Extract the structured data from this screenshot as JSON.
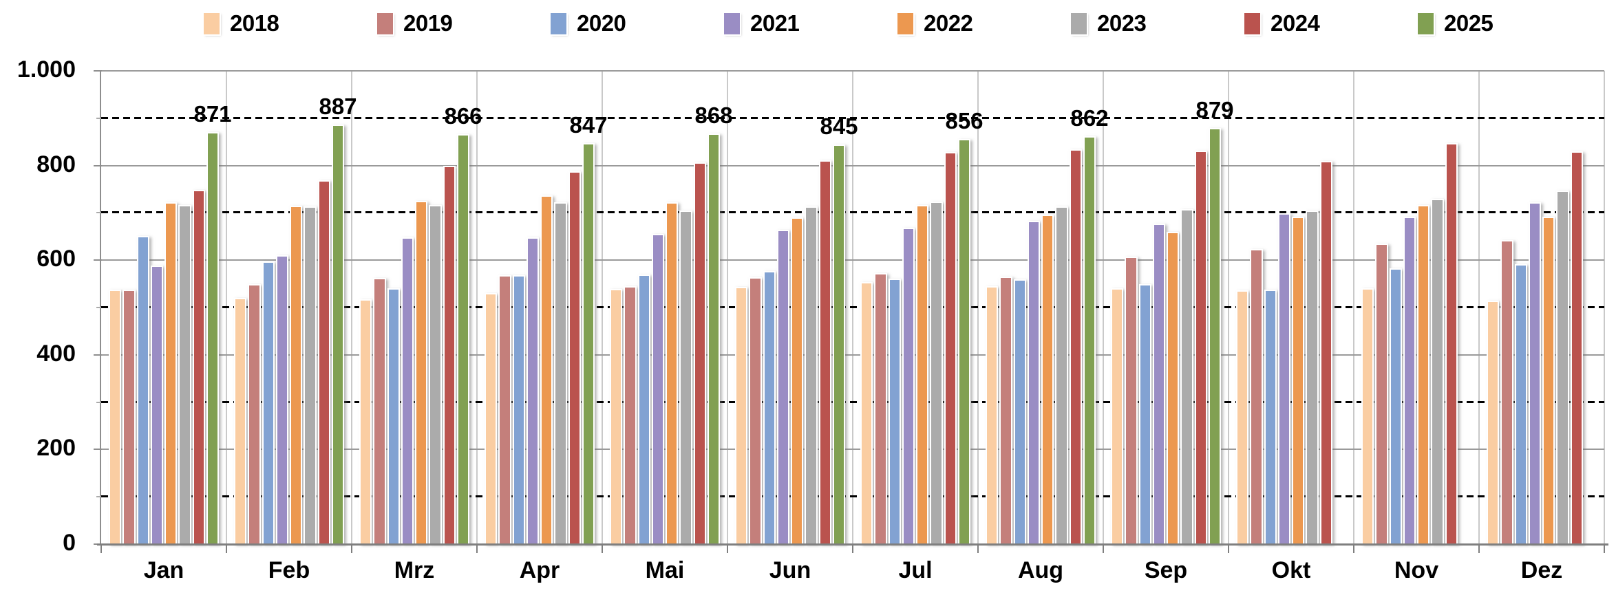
{
  "chart_data": {
    "type": "bar",
    "title": "",
    "xlabel": "",
    "ylabel": "",
    "legend_position": "top",
    "categories": [
      "Jan",
      "Feb",
      "Mrz",
      "Apr",
      "Mai",
      "Jun",
      "Jul",
      "Aug",
      "Sep",
      "Okt",
      "Nov",
      "Dez"
    ],
    "series": [
      {
        "name": "2018",
        "color": "#FACDA2",
        "values": [
          538,
          521,
          518,
          531,
          539,
          544,
          554,
          545,
          541,
          537,
          541,
          514
        ]
      },
      {
        "name": "2019",
        "color": "#C47F7B",
        "values": [
          538,
          550,
          563,
          569,
          545,
          564,
          573,
          566,
          608,
          624,
          635,
          643
        ]
      },
      {
        "name": "2020",
        "color": "#82A2D2",
        "values": [
          651,
          598,
          540,
          568,
          570,
          577,
          561,
          559,
          549,
          538,
          583,
          592
        ]
      },
      {
        "name": "2021",
        "color": "#9A8DC4",
        "values": [
          589,
          610,
          649,
          648,
          656,
          664,
          668,
          683,
          678,
          699,
          692,
          723
        ]
      },
      {
        "name": "2022",
        "color": "#EC9850",
        "values": [
          722,
          715,
          725,
          737,
          723,
          690,
          717,
          696,
          660,
          692,
          717,
          692
        ]
      },
      {
        "name": "2023",
        "color": "#ABABAB",
        "values": [
          716,
          713,
          717,
          722,
          705,
          714,
          724,
          713,
          708,
          705,
          730,
          747
        ]
      },
      {
        "name": "2024",
        "color": "#BA534E",
        "values": [
          749,
          769,
          799,
          788,
          807,
          811,
          828,
          834,
          832,
          810,
          847,
          830
        ]
      },
      {
        "name": "2025",
        "color": "#81A052",
        "values": [
          871,
          887,
          866,
          847,
          868,
          845,
          856,
          862,
          879,
          null,
          null,
          null
        ]
      }
    ],
    "data_labels_series": "2025",
    "data_labels": [
      871,
      887,
      866,
      847,
      868,
      845,
      856,
      862,
      879
    ],
    "yaxis": {
      "min": 0,
      "max": 1000,
      "major_step": 200,
      "minor_step": 100,
      "tick_values": [
        0,
        200,
        400,
        600,
        800,
        1000
      ],
      "tick_labels": [
        "0",
        "200",
        "400",
        "600",
        "800",
        "1.000"
      ]
    },
    "grid": {
      "solid_lines": [
        200,
        400,
        600,
        800,
        1000
      ],
      "dashed_lines": [
        100,
        300,
        500,
        700,
        900
      ]
    }
  }
}
